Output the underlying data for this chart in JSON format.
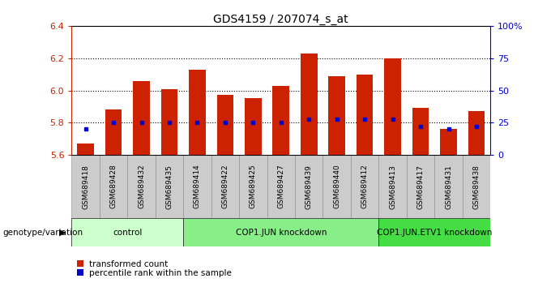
{
  "title": "GDS4159 / 207074_s_at",
  "samples": [
    "GSM689418",
    "GSM689428",
    "GSM689432",
    "GSM689435",
    "GSM689414",
    "GSM689422",
    "GSM689425",
    "GSM689427",
    "GSM689439",
    "GSM689440",
    "GSM689412",
    "GSM689413",
    "GSM689417",
    "GSM689431",
    "GSM689438"
  ],
  "transformed_count": [
    5.67,
    5.88,
    6.06,
    6.01,
    6.13,
    5.97,
    5.95,
    6.03,
    6.23,
    6.09,
    6.1,
    6.2,
    5.89,
    5.76,
    5.87
  ],
  "percentile_rank": [
    20,
    25,
    25,
    25,
    25,
    25,
    25,
    25,
    28,
    28,
    28,
    28,
    22,
    20,
    22
  ],
  "groups": [
    {
      "label": "control",
      "start": 0,
      "end": 4,
      "color": "#ccffcc"
    },
    {
      "label": "COP1.JUN knockdown",
      "start": 4,
      "end": 11,
      "color": "#88ee88"
    },
    {
      "label": "COP1.JUN.ETV1 knockdown",
      "start": 11,
      "end": 15,
      "color": "#44dd44"
    }
  ],
  "ylim_left": [
    5.6,
    6.4
  ],
  "ylim_right": [
    0,
    100
  ],
  "bar_color": "#cc2200",
  "dot_color": "#0000cc",
  "bar_width": 0.6,
  "xlabel_color": "#cc2200",
  "ylabel_right_color": "#0000cc",
  "sample_box_color": "#cccccc",
  "legend_items": [
    {
      "label": "transformed count",
      "color": "#cc2200"
    },
    {
      "label": "percentile rank within the sample",
      "color": "#0000cc"
    }
  ],
  "genotype_label": "genotype/variation",
  "yticks_left": [
    5.6,
    5.8,
    6.0,
    6.2,
    6.4
  ],
  "yticks_right": [
    0,
    25,
    50,
    75,
    100
  ],
  "ytick_right_labels": [
    "0",
    "25",
    "50",
    "75",
    "100%"
  ]
}
